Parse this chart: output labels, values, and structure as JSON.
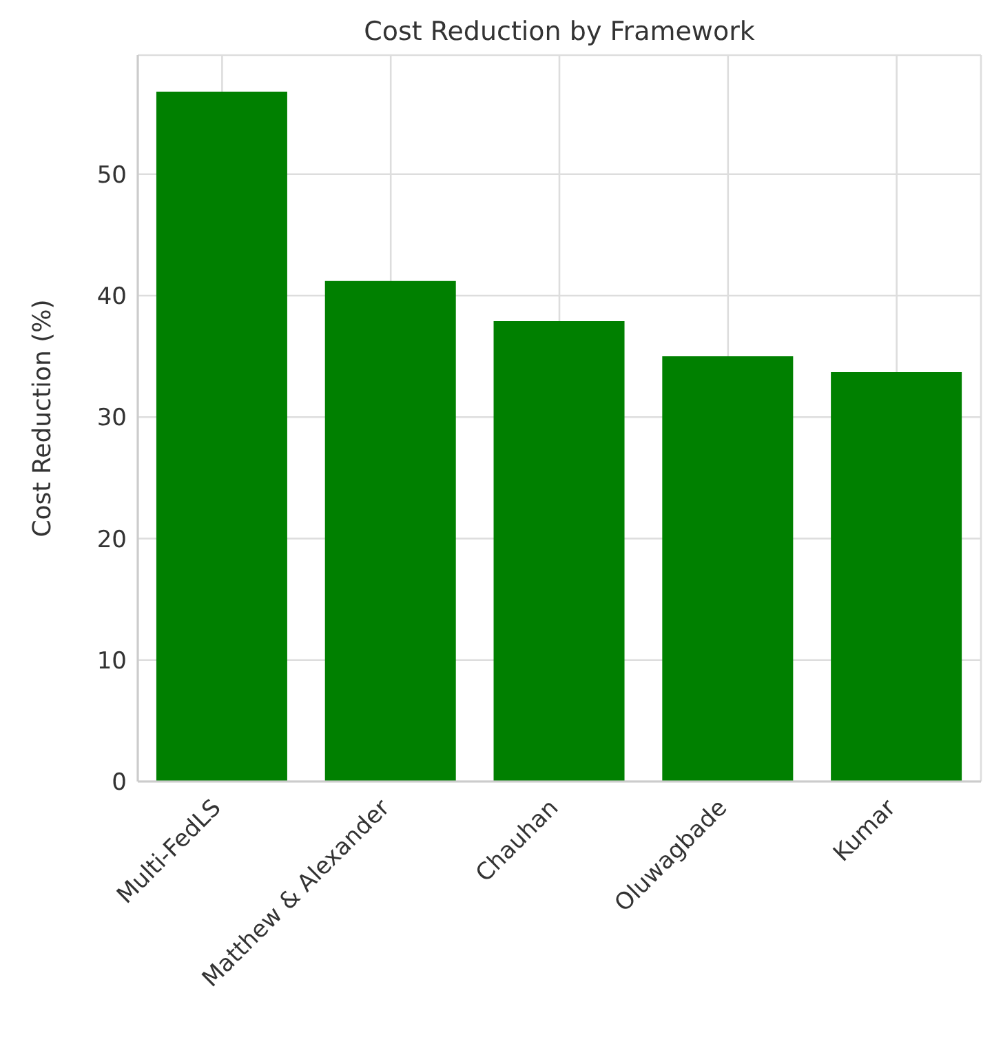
{
  "chart_data": {
    "type": "bar",
    "title": "Cost Reduction by Framework",
    "ylabel": "Cost Reduction (%)",
    "categories": [
      "Multi-FedLS",
      "Matthew & Alexander",
      "Chauhan",
      "Oluwagbade",
      "Kumar"
    ],
    "values": [
      56.8,
      41.2,
      37.9,
      35.0,
      33.7
    ],
    "color": "#008000",
    "ylim": [
      0,
      59.8
    ],
    "yticks": [
      0,
      10,
      20,
      30,
      40,
      50
    ],
    "grid": true
  }
}
